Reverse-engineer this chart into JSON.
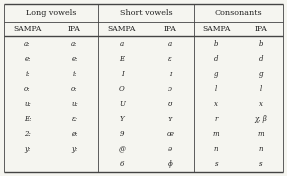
{
  "title_long": "Long vowels",
  "title_short": "Short vowels",
  "title_cons": "Consonants",
  "header_sampa": "SAMPA",
  "header_ipa": "IPA",
  "long_vowels_sampa": [
    "a:",
    "e:",
    "i:",
    "o:",
    "u:",
    "E:",
    "2:",
    "y:"
  ],
  "long_vowels_ipa": [
    "aː",
    "eː",
    "iː",
    "oː",
    "uː",
    "εː",
    "øː",
    "yː"
  ],
  "short_vowels_sampa": [
    "a",
    "E",
    "I",
    "O",
    "U",
    "Y",
    "9",
    "@",
    "6"
  ],
  "short_vowels_ipa": [
    "a",
    "ε",
    "ɪ",
    "ɔ",
    "ʊ",
    "ʏ",
    "œ",
    "ə",
    "ɸ"
  ],
  "cons_sampa": [
    "b",
    "d",
    "g",
    "l",
    "x",
    "r",
    "m",
    "n",
    "s"
  ],
  "cons_ipa": [
    "b",
    "d",
    "ɡ",
    "l",
    "x",
    "χ, β",
    "m",
    "n",
    "s"
  ],
  "bg_color": "#f5f5f0",
  "line_color": "#444444",
  "text_color": "#222222",
  "title_fontsize": 5.8,
  "header_fontsize": 5.5,
  "data_fontsize": 5.0,
  "fig_width": 2.87,
  "fig_height": 1.76,
  "dpi": 100
}
